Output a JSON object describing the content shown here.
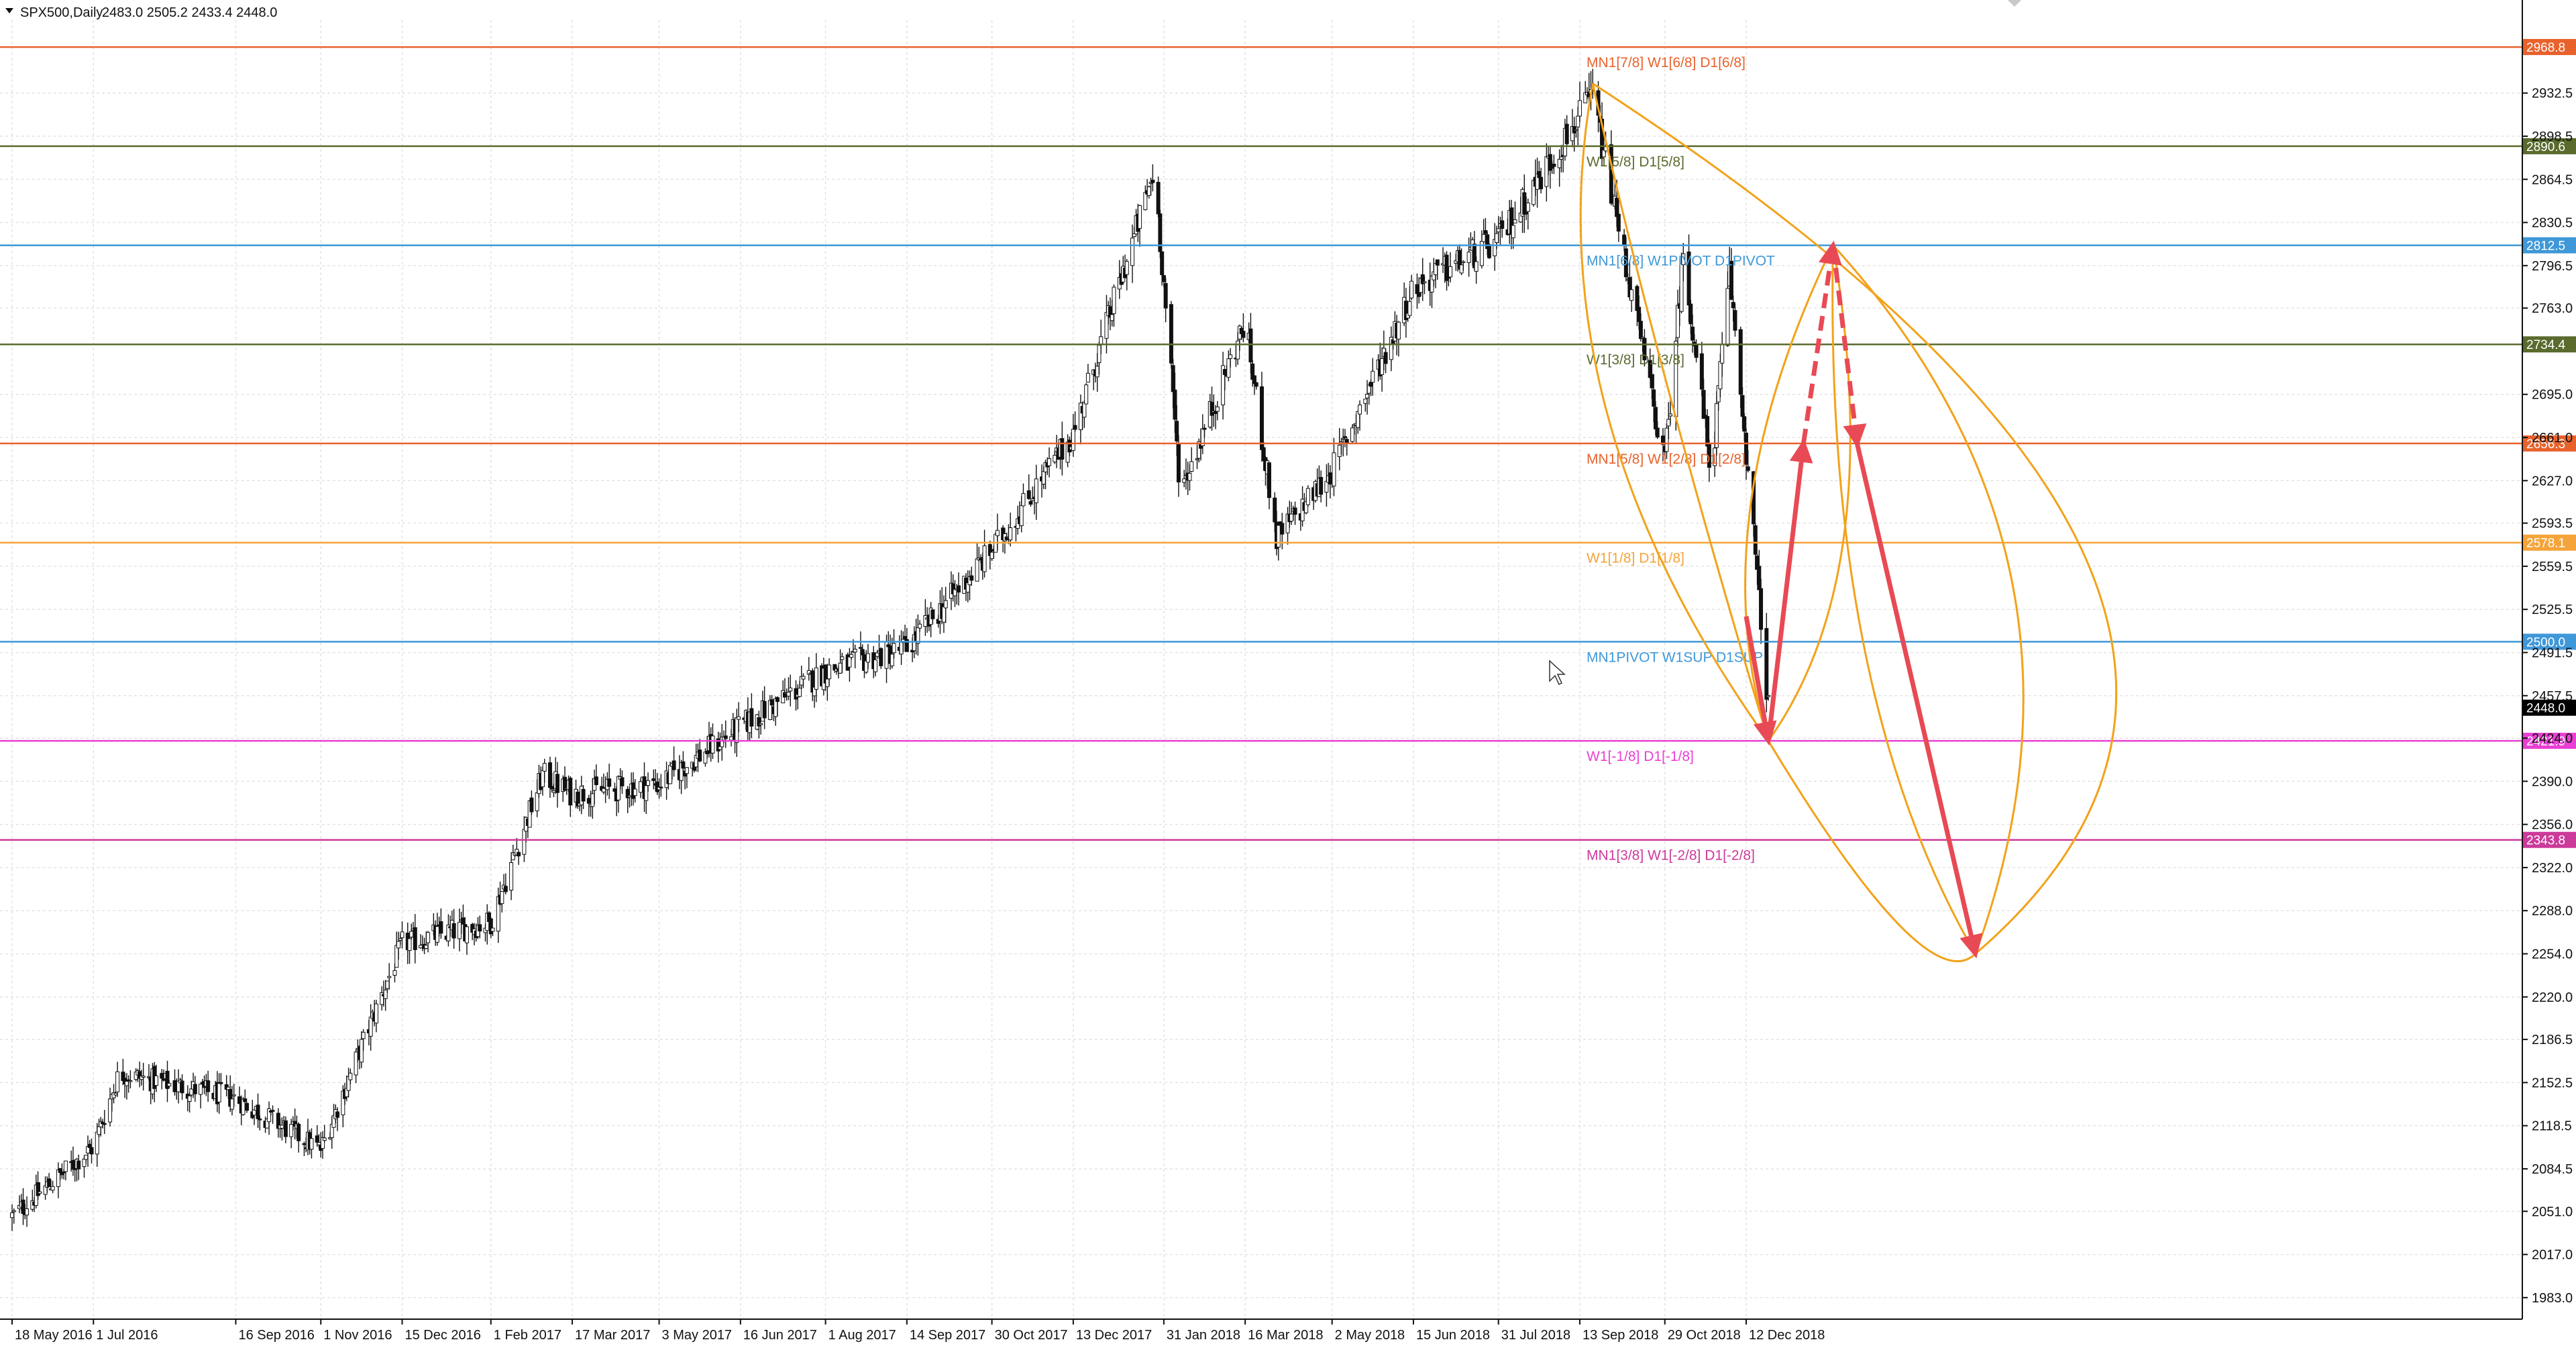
{
  "header": {
    "symbol": "SPX500,Daily",
    "ohlc": "2483.0 2505.2 2433.4 2448.0"
  },
  "colors": {
    "background": "#ffffff",
    "grid": "#e3e3e3",
    "candle": "#111111",
    "projection": "#f2a21a",
    "arrow": "#e84a55"
  },
  "chart_data": {
    "type": "candlestick",
    "title": "SPX500,Daily",
    "ylim": [
      1966,
      2990
    ],
    "grid": true,
    "y_ticks": [
      "2932.5",
      "2898.5",
      "2864.5",
      "2830.5",
      "2796.5",
      "2763.0",
      "2695.0",
      "2661.0",
      "2627.0",
      "2593.5",
      "2559.5",
      "2525.5",
      "2491.5",
      "2457.5",
      "2424.0",
      "2390.0",
      "2356.0",
      "2322.0",
      "2288.0",
      "2254.0",
      "2220.0",
      "2186.5",
      "2152.5",
      "2118.5",
      "2084.5",
      "2051.0",
      "2017.0",
      "1983.0"
    ],
    "x_ticks": [
      "18 May 2016",
      "1 Jul 2016",
      "16 Sep 2016",
      "1 Nov 2016",
      "15 Dec 2016",
      "1 Feb 2017",
      "17 Mar 2017",
      "3 May 2017",
      "16 Jun 2017",
      "1 Aug 2017",
      "14 Sep 2017",
      "30 Oct 2017",
      "13 Dec 2017",
      "31 Jan 2018",
      "16 Mar 2018",
      "2 May 2018",
      "15 Jun 2018",
      "31 Jul 2018",
      "13 Sep 2018",
      "29 Oct 2018",
      "12 Dec 2018"
    ],
    "price_path": [
      {
        "date": "18 May 2016",
        "close": 2047
      },
      {
        "date": "1 Jul 2016",
        "close": 2102
      },
      {
        "date": "15 Jul 2016",
        "close": 2160
      },
      {
        "date": "16 Sep 2016",
        "close": 2140
      },
      {
        "date": "1 Nov 2016",
        "close": 2100
      },
      {
        "date": "15 Dec 2016",
        "close": 2262
      },
      {
        "date": "1 Feb 2017",
        "close": 2279
      },
      {
        "date": "1 Mar 2017",
        "close": 2395
      },
      {
        "date": "17 Mar 2017",
        "close": 2380
      },
      {
        "date": "3 May 2017",
        "close": 2388
      },
      {
        "date": "16 Jun 2017",
        "close": 2433
      },
      {
        "date": "1 Aug 2017",
        "close": 2477
      },
      {
        "date": "14 Sep 2017",
        "close": 2495
      },
      {
        "date": "30 Oct 2017",
        "close": 2572
      },
      {
        "date": "13 Dec 2017",
        "close": 2664
      },
      {
        "date": "26 Jan 2018",
        "close": 2872
      },
      {
        "date": "9 Feb 2018",
        "close": 2619
      },
      {
        "date": "16 Mar 2018",
        "close": 2752
      },
      {
        "date": "2 Apr 2018",
        "close": 2581
      },
      {
        "date": "2 May 2018",
        "close": 2635
      },
      {
        "date": "15 Jun 2018",
        "close": 2779
      },
      {
        "date": "31 Jul 2018",
        "close": 2816
      },
      {
        "date": "20 Sep 2018",
        "close": 2930
      },
      {
        "date": "29 Oct 2018",
        "close": 2641
      },
      {
        "date": "8 Nov 2018",
        "close": 2806
      },
      {
        "date": "23 Nov 2018",
        "close": 2632
      },
      {
        "date": "3 Dec 2018",
        "close": 2790
      },
      {
        "date": "12 Dec 2018",
        "close": 2651
      },
      {
        "date": "24 Dec 2018",
        "close": 2448
      }
    ],
    "levels": [
      {
        "value": 2968.8,
        "badge": "2968.8",
        "label": "MN1[7/8] W1[6/8] D1[6/8]",
        "color": "#e8622c"
      },
      {
        "value": 2890.6,
        "badge": "2890.6",
        "label": "W1[5/8] D1[5/8]",
        "color": "#5a6b2e"
      },
      {
        "value": 2812.5,
        "badge": "2812.5",
        "label": "MN1[6/8] W1PIVOT D1PIVOT",
        "color": "#3f98d8"
      },
      {
        "value": 2734.4,
        "badge": "2734.4",
        "label": "W1[3/8] D1[3/8]",
        "color": "#5a6b2e"
      },
      {
        "value": 2656.3,
        "badge": "2656.3",
        "label": "MN1[5/8] W1[2/8] D1[2/8]",
        "color": "#e8622c"
      },
      {
        "value": 2578.1,
        "badge": "2578.1",
        "label": "W1[1/8] D1[1/8]",
        "color": "#f5a43a"
      },
      {
        "value": 2500.0,
        "badge": "2500.0",
        "label": "MN1PIVOT W1SUP D1SUP",
        "color": "#3f98d8"
      },
      {
        "value": 2421.9,
        "badge": "2421.9",
        "label": "W1[-1/8] D1[-1/8]",
        "color": "#e93fd4"
      },
      {
        "value": 2343.8,
        "badge": "2343.8",
        "label": "MN1[3/8] W1[-2/8] D1[-2/8]",
        "color": "#cc3a9a"
      }
    ],
    "current_price": {
      "value": 2448.0,
      "badge": "2448.0",
      "color": "#000000"
    },
    "projection": [
      {
        "date": "24 Dec 2018",
        "price": 2421.9
      },
      {
        "date": "12 Jan 2019",
        "price": 2656.3
      },
      {
        "date": "28 Jan 2019",
        "price": 2812.5
      },
      {
        "date": "10 Feb 2019",
        "price": 2656.3
      },
      {
        "date": "15 Apr 2019",
        "price": 2254.0
      }
    ]
  }
}
